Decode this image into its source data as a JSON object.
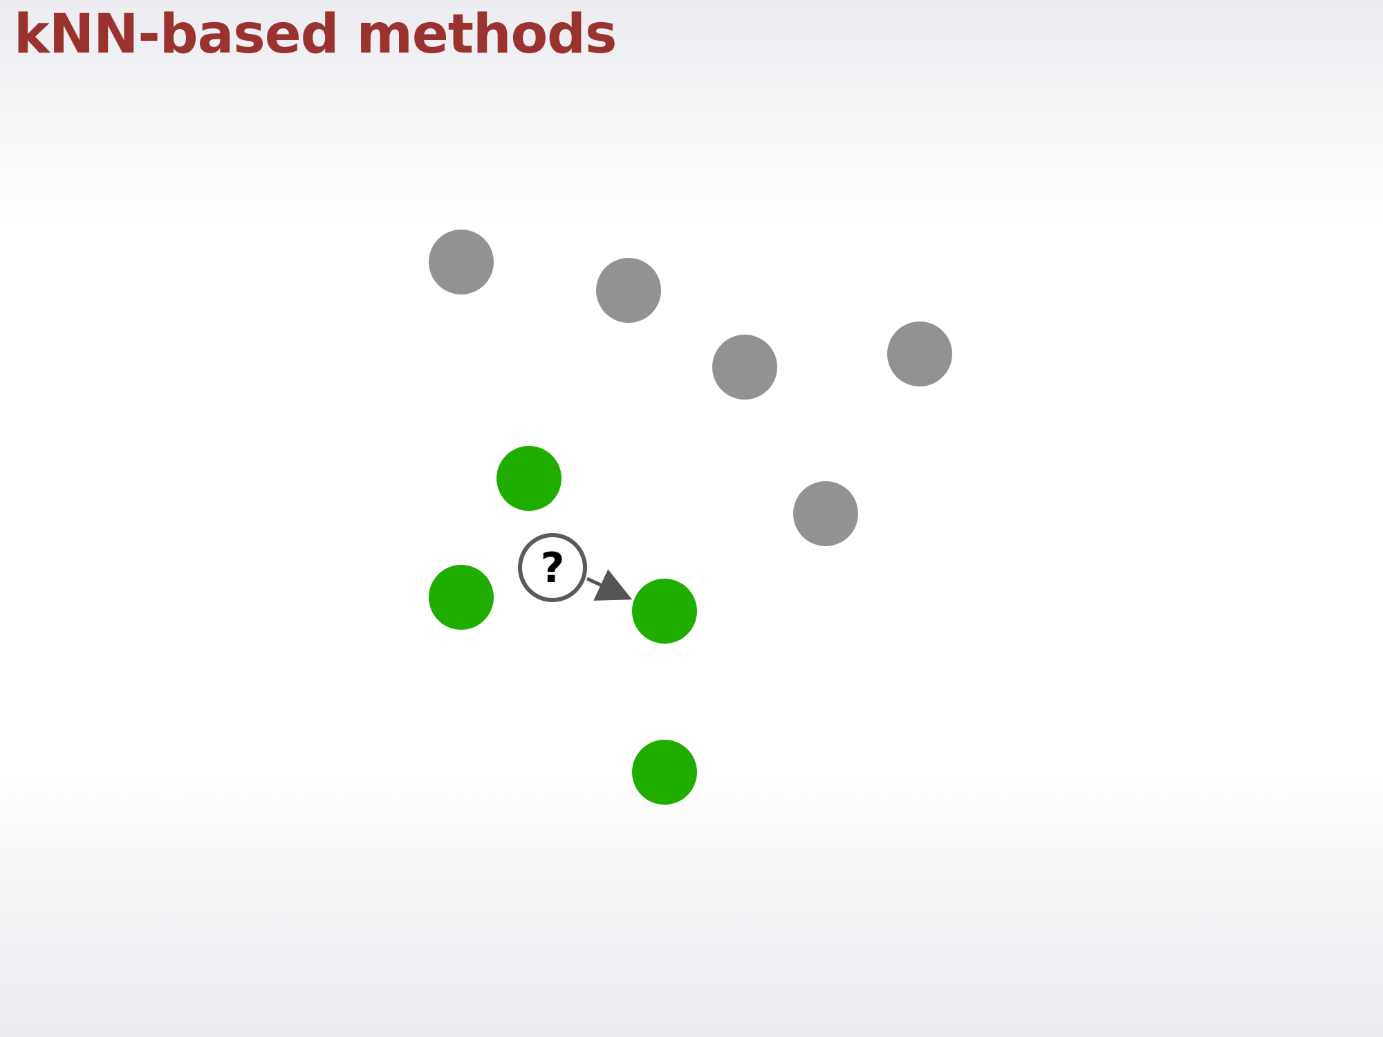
{
  "title": "kNN-based methods",
  "query": {
    "label": "?"
  },
  "colors": {
    "title": "#9a3330",
    "class_gray": "#929292",
    "class_green": "#1fad00",
    "query_stroke": "#5a5a5a",
    "arrow": "#555555"
  },
  "points": [
    {
      "class": "gray"
    },
    {
      "class": "gray"
    },
    {
      "class": "gray"
    },
    {
      "class": "gray"
    },
    {
      "class": "gray"
    },
    {
      "class": "green"
    },
    {
      "class": "green"
    },
    {
      "class": "green"
    },
    {
      "class": "green"
    }
  ]
}
